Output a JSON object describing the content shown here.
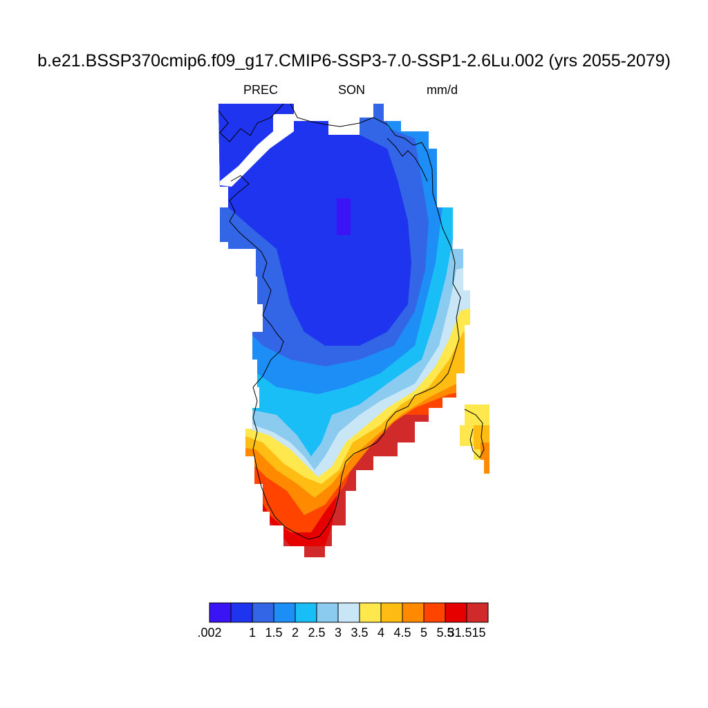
{
  "title": "b.e21.BSSP370cmip6.f09_g17.CMIP6-SSP3-7.0-SSP1-2.6Lu.002 (yrs 2055-2079)",
  "subtitle": {
    "variable": "PREC",
    "season": "SON",
    "units": "mm/d"
  },
  "colorbar": {
    "colors": [
      "#3a14f5",
      "#1f34ee",
      "#3366e6",
      "#1d8ef5",
      "#1abef7",
      "#8ccbf0",
      "#c8e6f6",
      "#ffe84d",
      "#ffbd14",
      "#ff8a00",
      "#ff4400",
      "#e60000",
      "#d12a2a"
    ],
    "labels": [
      ".002",
      "1",
      "1.5",
      "2",
      "2.5",
      "3",
      "3.5",
      "4",
      "4.5",
      "5",
      "5.5",
      "31.515"
    ]
  },
  "map": {
    "region": "Greenland",
    "field": "precipitation rate, September-October-November mean",
    "pattern": "lowest (< 1 mm/d) over the northern/central ice sheet interior, increasing toward the coasts, highest (> 5.5 mm/d) along the southeast and southern tip"
  }
}
